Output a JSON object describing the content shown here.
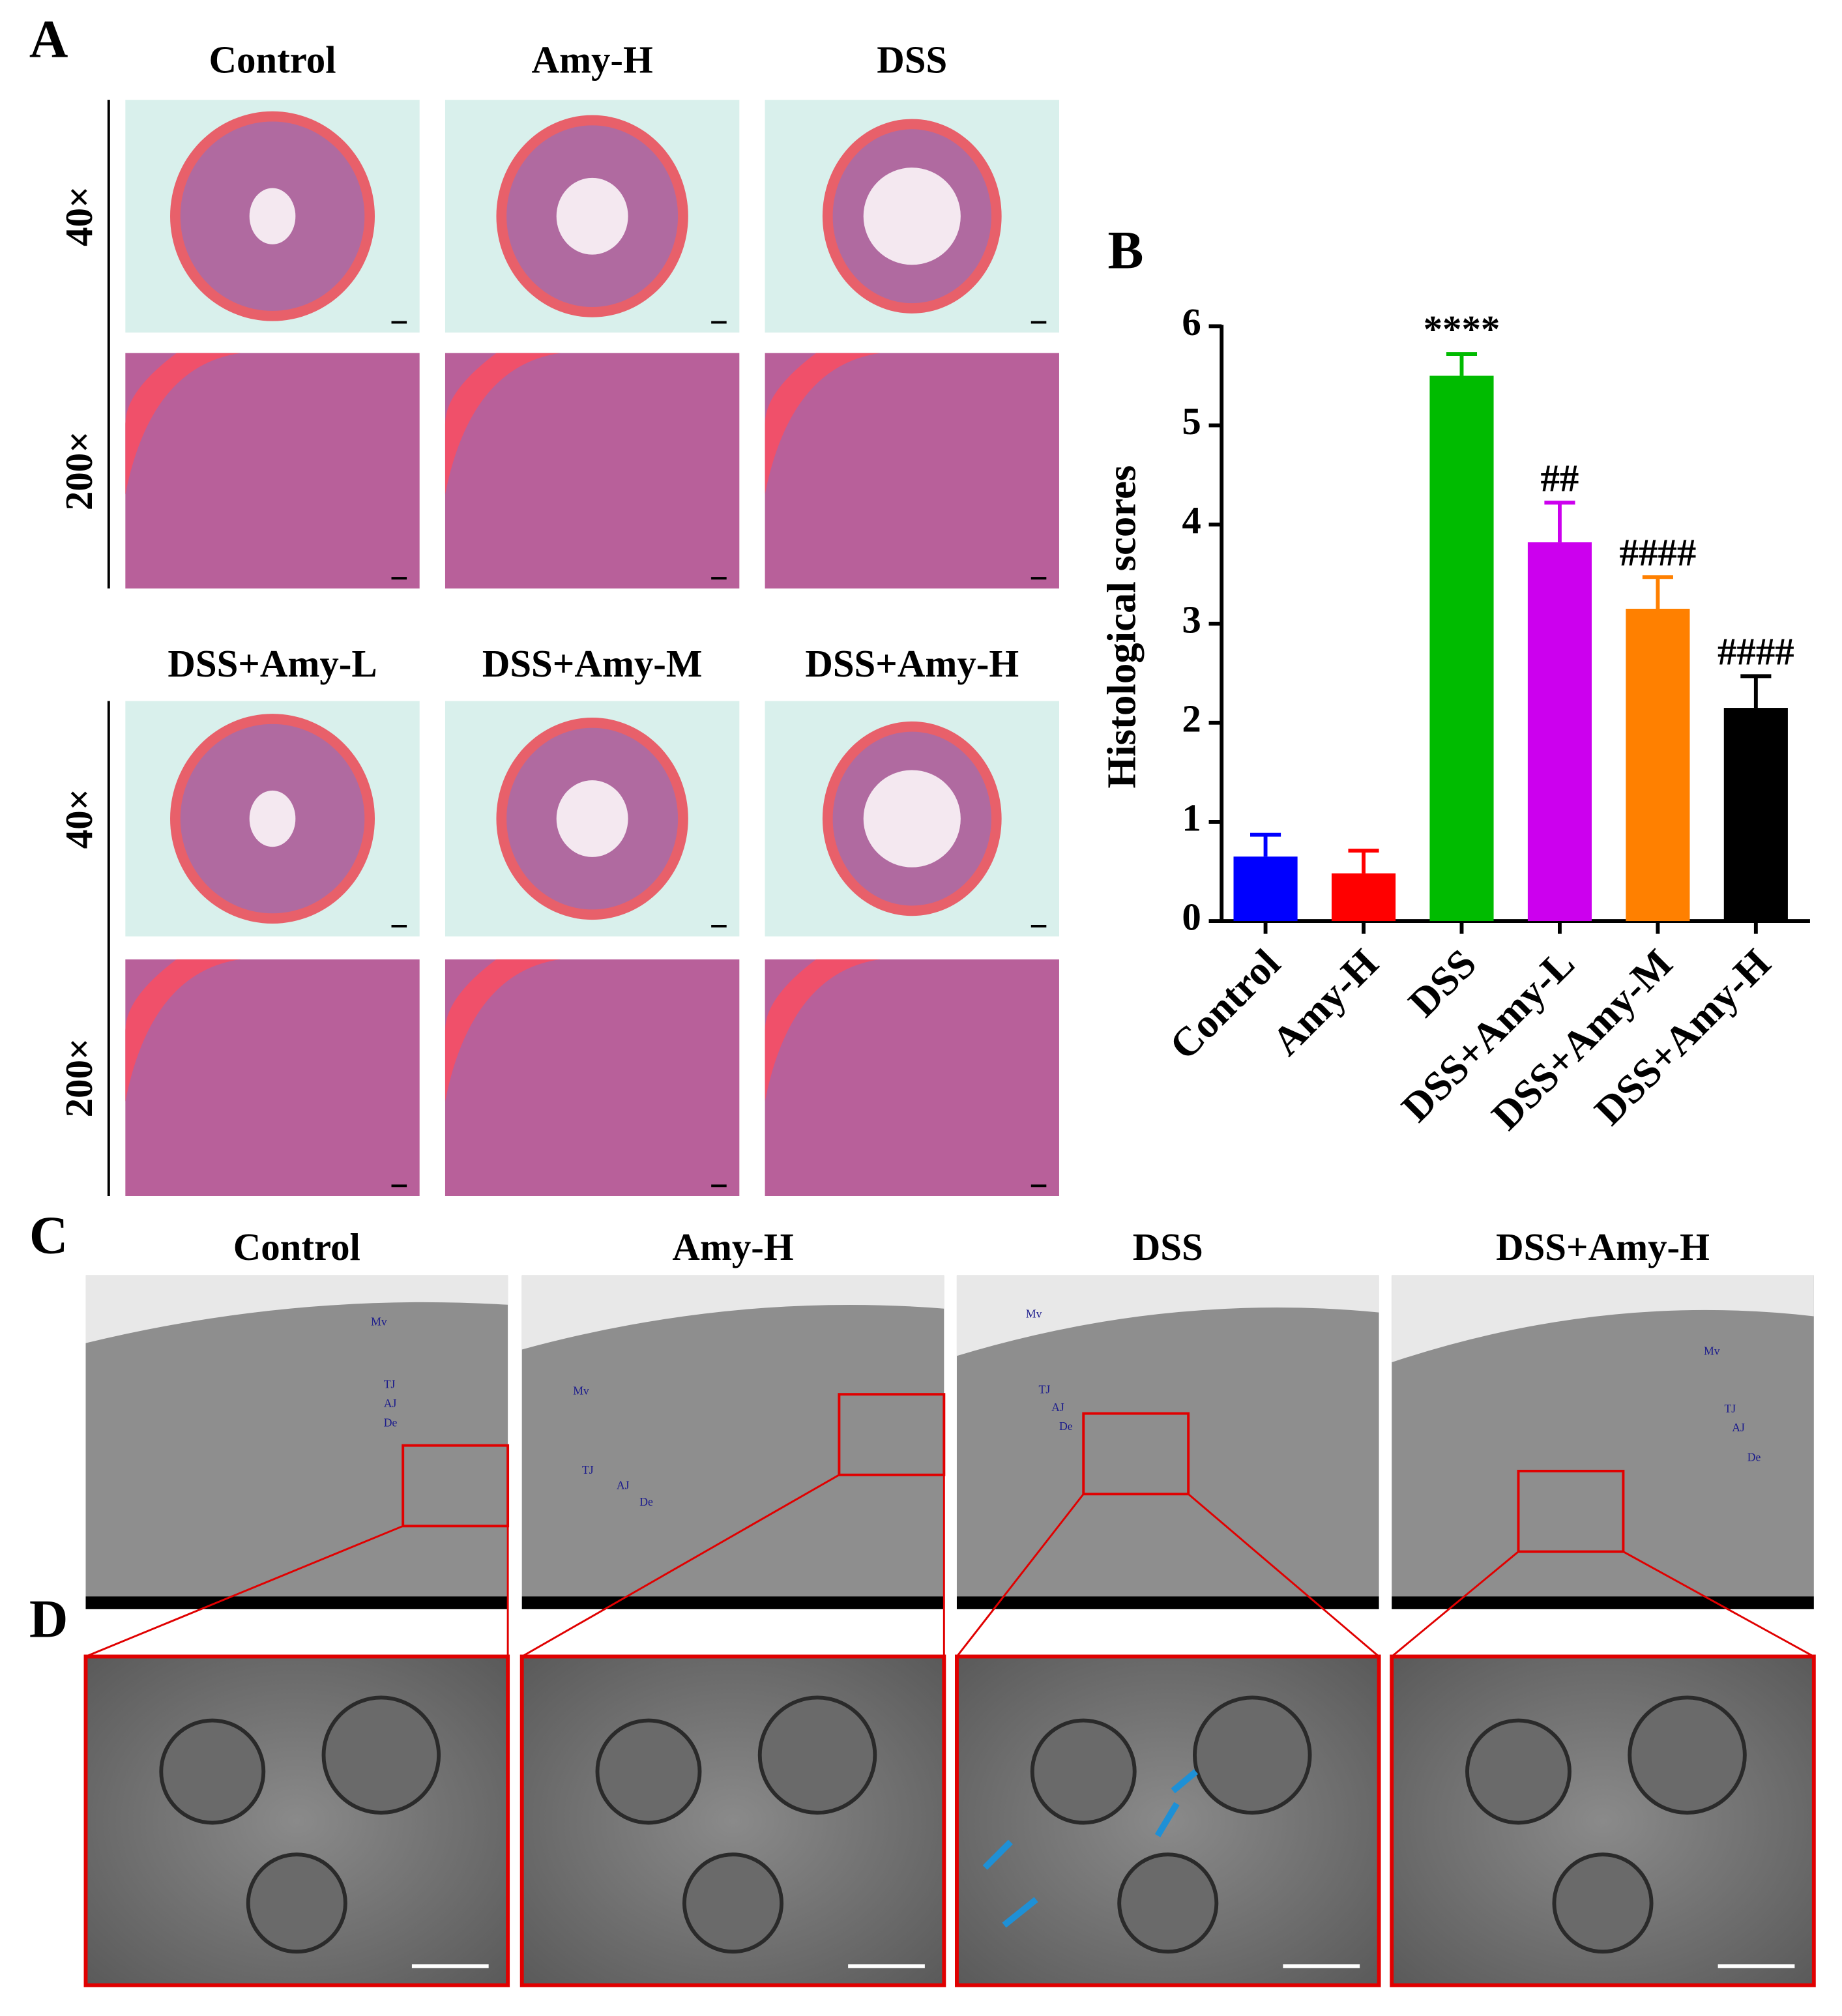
{
  "panel_labels": [
    "A",
    "B",
    "C",
    "D"
  ],
  "panel_a": {
    "columns_top": [
      "Control",
      "Amy-H",
      "DSS"
    ],
    "columns_bottom": [
      "DSS+Amy-L",
      "DSS+Amy-M",
      "DSS+Amy-H"
    ],
    "rows": [
      "40×",
      "200×"
    ]
  },
  "panel_c": {
    "columns": [
      "Control",
      "Amy-H",
      "DSS",
      "DSS+Amy-H"
    ],
    "annotations": [
      "Mv",
      "TJ",
      "AJ",
      "De"
    ]
  },
  "chart_data": {
    "type": "bar",
    "y_label": "Histological scores",
    "categories": [
      "Control",
      "Amy-H",
      "DSS",
      "DSS+Amy-L",
      "DSS+Amy-M",
      "DSS+Amy-H"
    ],
    "values": [
      0.65,
      0.48,
      5.5,
      3.82,
      3.15,
      2.15
    ],
    "errors": [
      0.22,
      0.23,
      0.22,
      0.4,
      0.32,
      0.32
    ],
    "colors": [
      "#0000ff",
      "#ff0000",
      "#00bb00",
      "#cc00ee",
      "#ff8000",
      "#000000"
    ],
    "significance": [
      null,
      null,
      "****",
      "##",
      "####",
      "####"
    ],
    "ylim": [
      0,
      6
    ],
    "yticks": [
      0,
      1,
      2,
      3,
      4,
      5,
      6
    ],
    "grid": false
  }
}
